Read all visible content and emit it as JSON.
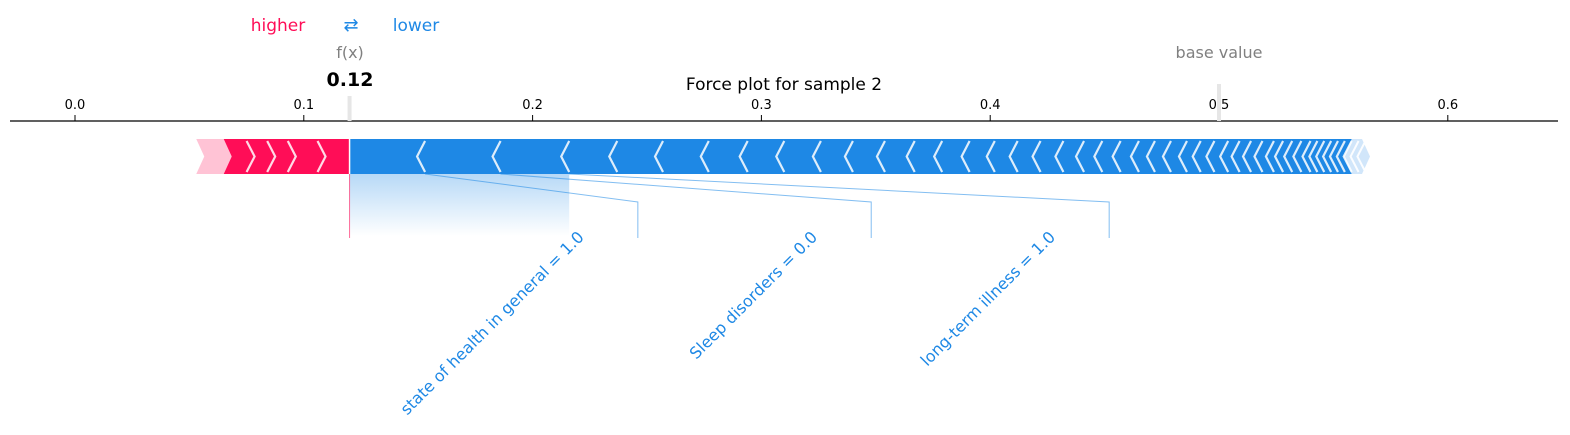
{
  "legend": {
    "higher_label": "higher",
    "lower_label": "lower",
    "arrow_glyph": "⇄"
  },
  "fx": {
    "label": "f(x)",
    "value_label": "0.12",
    "value": 0.12
  },
  "base_value": {
    "label": "base value",
    "value": 0.5
  },
  "colors": {
    "positive": "#ff0d57",
    "positive_light": "#ffc3d5",
    "negative": "#1e88e5",
    "negative_light": "#d1e6fa",
    "axis": "#000000",
    "muted_text": "#808080"
  },
  "chart_data": {
    "type": "force",
    "title": "Force plot for sample 2",
    "xlim": [
      -0.028,
      0.648
    ],
    "x_ticks": [
      "0.0",
      "0.1",
      "0.2",
      "0.3",
      "0.4",
      "0.5",
      "0.6"
    ],
    "output_value": 0.12,
    "base_value": 0.5,
    "positive_range": [
      0.053,
      0.12
    ],
    "negative_range": [
      0.12,
      0.566
    ],
    "negative_feature_boundaries": [
      0.153,
      0.186,
      0.216,
      0.237,
      0.257,
      0.277,
      0.294,
      0.31,
      0.326,
      0.34,
      0.354,
      0.367,
      0.379,
      0.391,
      0.402,
      0.412,
      0.422,
      0.432,
      0.441,
      0.449,
      0.457,
      0.465,
      0.472,
      0.479,
      0.486,
      0.492,
      0.498,
      0.504,
      0.509,
      0.514,
      0.519,
      0.524,
      0.528,
      0.532,
      0.536,
      0.54,
      0.543,
      0.546,
      0.549,
      0.552,
      0.555,
      0.558
    ],
    "positive_feature_boundaries": [
      0.065,
      0.075,
      0.084,
      0.093,
      0.106
    ],
    "labeled_features": [
      {
        "label": "state of health in general = 1.0",
        "start": 0.12,
        "end": 0.153,
        "label_x": 0.246
      },
      {
        "label": "Sleep disorders = 0.0",
        "start": 0.153,
        "end": 0.186,
        "label_x": 0.348
      },
      {
        "label": "long-term illness = 1.0",
        "start": 0.186,
        "end": 0.216,
        "label_x": 0.452
      }
    ]
  }
}
